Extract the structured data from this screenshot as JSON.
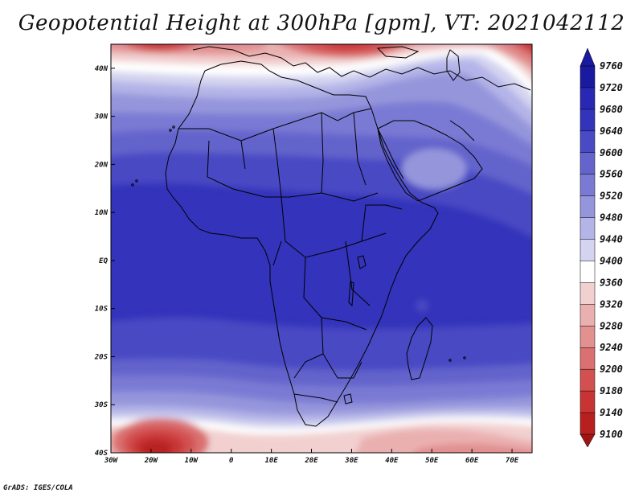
{
  "title": "Geopotential Height at 300hPa [gpm], VT: 2021042112",
  "footer": "GrADS: IGES/COLA",
  "map": {
    "lon_range": [
      -30,
      75
    ],
    "lat_range": [
      -40,
      45
    ],
    "lon_ticks": [
      {
        "value": -30,
        "label": "30W"
      },
      {
        "value": -20,
        "label": "20W"
      },
      {
        "value": -10,
        "label": "10W"
      },
      {
        "value": 0,
        "label": "0"
      },
      {
        "value": 10,
        "label": "10E"
      },
      {
        "value": 20,
        "label": "20E"
      },
      {
        "value": 30,
        "label": "30E"
      },
      {
        "value": 40,
        "label": "40E"
      },
      {
        "value": 50,
        "label": "50E"
      },
      {
        "value": 60,
        "label": "60E"
      },
      {
        "value": 70,
        "label": "70E"
      }
    ],
    "lat_ticks": [
      {
        "value": 40,
        "label": "40N"
      },
      {
        "value": 30,
        "label": "30N"
      },
      {
        "value": 20,
        "label": "20N"
      },
      {
        "value": 10,
        "label": "10N"
      },
      {
        "value": 0,
        "label": "EQ"
      },
      {
        "value": -10,
        "label": "10S"
      },
      {
        "value": -20,
        "label": "20S"
      },
      {
        "value": -30,
        "label": "30S"
      },
      {
        "value": -40,
        "label": "40S"
      }
    ]
  },
  "colorbar": {
    "levels": [
      "9760",
      "9720",
      "9680",
      "9640",
      "9600",
      "9560",
      "9520",
      "9480",
      "9440",
      "9400",
      "9360",
      "9320",
      "9280",
      "9240",
      "9200",
      "9180",
      "9140",
      "9100"
    ],
    "colors": [
      "#1a1aa0",
      "#2828b4",
      "#3333bb",
      "#4a4ac4",
      "#6464cc",
      "#7a7ad4",
      "#9595dc",
      "#b4b4e8",
      "#d4d4f0",
      "#ffffff",
      "#f2d0d0",
      "#eab0b0",
      "#e29090",
      "#da7070",
      "#d25050",
      "#c83434",
      "#b82020",
      "#a01414"
    ]
  }
}
